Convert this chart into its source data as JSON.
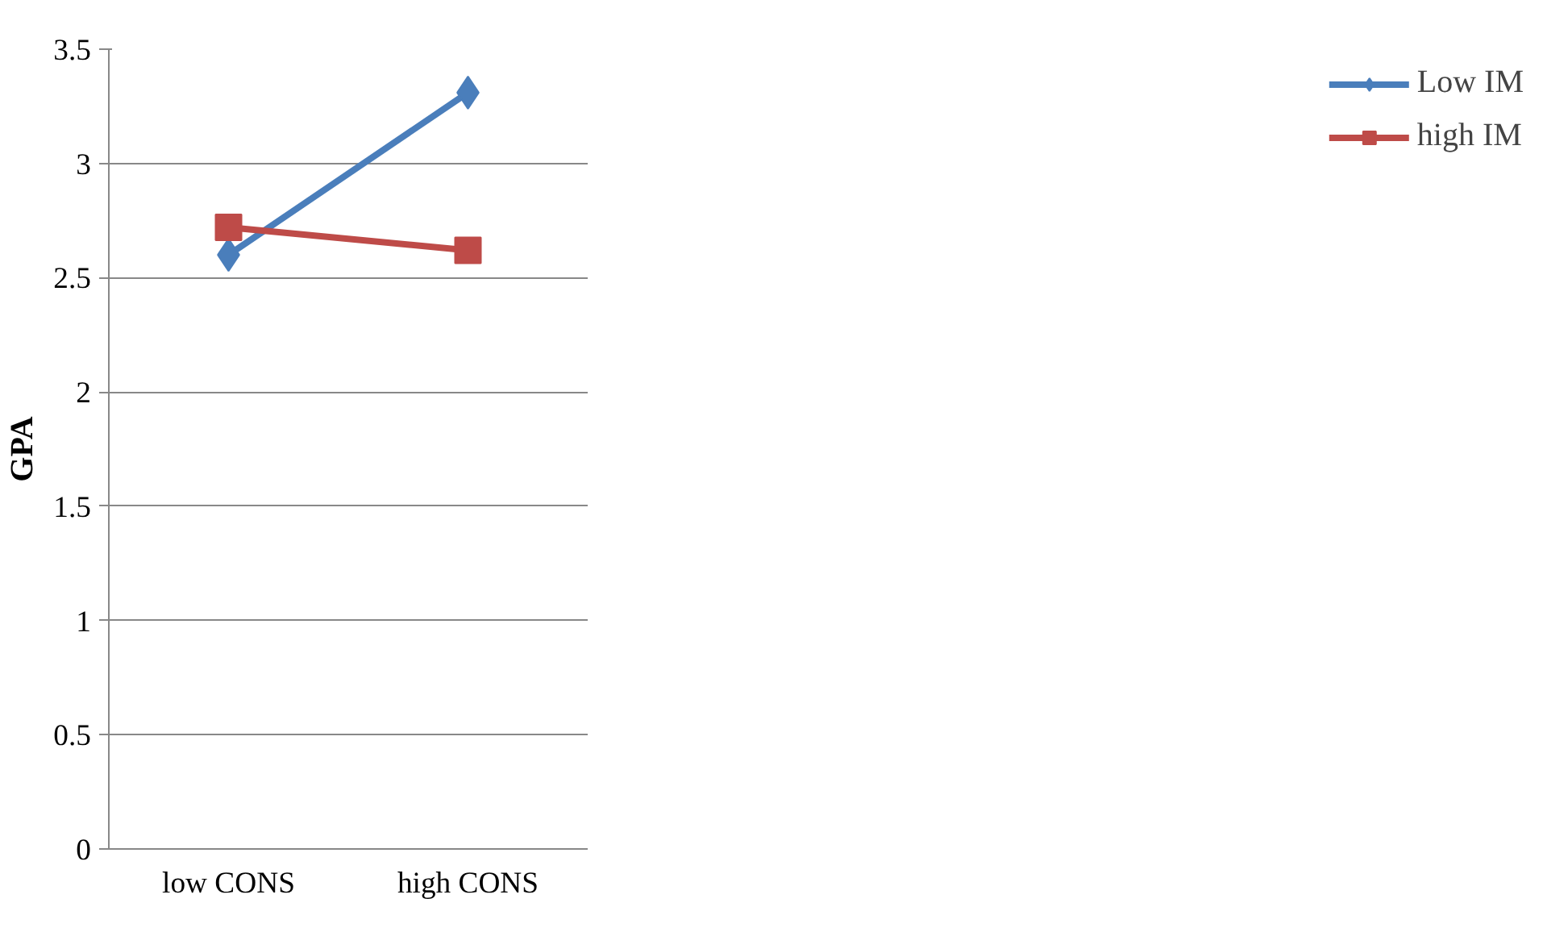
{
  "chart_data": {
    "type": "line",
    "ylabel": "GPA",
    "categories": [
      "low CONS",
      "high CONS"
    ],
    "series": [
      {
        "name": "Low IM",
        "color": "#4a7ebb",
        "values": [
          2.6,
          3.31
        ],
        "marker": "diamond"
      },
      {
        "name": "high IM",
        "color": "#be4b48",
        "values": [
          2.72,
          2.62
        ],
        "marker": "square"
      }
    ],
    "ylim": [
      0,
      3.5
    ],
    "yticks": [
      0,
      0.5,
      1,
      1.5,
      2,
      2.5,
      3,
      3.5
    ],
    "grid": "y",
    "legend": "right"
  }
}
